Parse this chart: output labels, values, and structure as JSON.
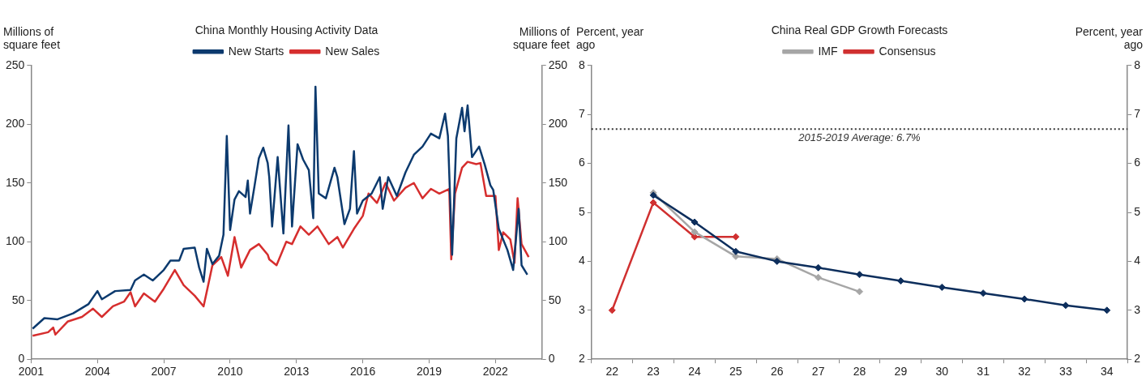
{
  "chart_data": [
    {
      "type": "line",
      "title": "China Monthly Housing Activity Data",
      "ylabel": "Millions of square feet",
      "y2label": "Millions of square feet",
      "xlim": [
        2001,
        2024.1
      ],
      "xticks": [
        2001,
        2004,
        2007,
        2010,
        2013,
        2016,
        2019,
        2022
      ],
      "ylim": [
        0,
        250
      ],
      "yticks": [
        0,
        50,
        100,
        150,
        200,
        250
      ],
      "y2lim": [
        0,
        250
      ],
      "y2ticks": [
        0,
        50,
        100,
        150,
        200,
        250
      ],
      "grid": false,
      "legend": "top",
      "marker": "none",
      "line_style": "solid",
      "series": [
        {
          "name": "New Starts",
          "color": "#0c3a6e",
          "x": [
            2001.07,
            2001.6,
            2002.2,
            2002.9,
            2003.6,
            2004.0,
            2004.2,
            2004.8,
            2005.5,
            2005.7,
            2006.1,
            2006.5,
            2007.0,
            2007.3,
            2007.7,
            2007.9,
            2008.4,
            2008.6,
            2008.8,
            2008.95,
            2009.2,
            2009.5,
            2009.7,
            2009.85,
            2010.0,
            2010.2,
            2010.4,
            2010.7,
            2010.8,
            2010.9,
            2011.1,
            2011.3,
            2011.5,
            2011.7,
            2011.77,
            2011.9,
            2012.15,
            2012.41,
            2012.64,
            2012.8,
            2013.05,
            2013.3,
            2013.56,
            2013.76,
            2013.86,
            2014.01,
            2014.33,
            2014.72,
            2014.85,
            2015.17,
            2015.42,
            2015.6,
            2015.74,
            2016.0,
            2016.4,
            2016.77,
            2016.9,
            2017.15,
            2017.54,
            2017.93,
            2018.31,
            2018.7,
            2019.08,
            2019.46,
            2019.72,
            2019.85,
            2020.04,
            2020.23,
            2020.49,
            2020.6,
            2020.74,
            2020.94,
            2021.26,
            2021.51,
            2021.77,
            2021.9,
            2022.15,
            2022.54,
            2022.8,
            2023.05,
            2023.18,
            2023.44
          ],
          "values": [
            26,
            35,
            34,
            39,
            47,
            58,
            51,
            58,
            59,
            67,
            72,
            67,
            76,
            84,
            84,
            94,
            95,
            78,
            66,
            94,
            81,
            88,
            106,
            190,
            110,
            136,
            143,
            138,
            152,
            124,
            147,
            171,
            180,
            167,
            155,
            113,
            172,
            107,
            199,
            113,
            183,
            170,
            161,
            120,
            232,
            141,
            137,
            163,
            155,
            115,
            128,
            177,
            124,
            135,
            141,
            155,
            128,
            155,
            139,
            159,
            174,
            181,
            192,
            188,
            209,
            190,
            89,
            188,
            214,
            194,
            216,
            172,
            181,
            166,
            148,
            144,
            111,
            93,
            76,
            128,
            80,
            72
          ]
        },
        {
          "name": "New Sales",
          "color": "#d62e2e",
          "x": [
            2001.07,
            2001.77,
            2002.0,
            2002.1,
            2002.65,
            2003.3,
            2003.8,
            2004.2,
            2004.7,
            2005.2,
            2005.5,
            2005.7,
            2006.1,
            2006.6,
            2007.0,
            2007.5,
            2007.9,
            2008.4,
            2008.8,
            2008.95,
            2009.2,
            2009.6,
            2009.9,
            2010.2,
            2010.5,
            2010.9,
            2011.3,
            2011.7,
            2011.77,
            2012.1,
            2012.54,
            2012.8,
            2013.18,
            2013.56,
            2013.95,
            2014.46,
            2014.85,
            2015.1,
            2015.6,
            2016.0,
            2016.26,
            2016.64,
            2017.03,
            2017.41,
            2017.93,
            2018.31,
            2018.7,
            2019.08,
            2019.46,
            2019.91,
            2020.0,
            2020.17,
            2020.49,
            2020.74,
            2021.13,
            2021.32,
            2021.58,
            2022.0,
            2022.15,
            2022.35,
            2022.67,
            2022.86,
            2023.0,
            2023.18,
            2023.5
          ],
          "values": [
            20,
            23,
            27,
            21,
            32,
            36,
            43,
            36,
            45,
            49,
            57,
            45,
            56,
            49,
            60,
            76,
            63,
            54,
            45,
            58,
            80,
            87,
            71,
            104,
            78,
            93,
            98,
            89,
            85,
            80,
            100,
            98,
            113,
            106,
            113,
            98,
            104,
            95,
            111,
            122,
            141,
            133,
            150,
            135,
            146,
            150,
            137,
            145,
            141,
            145,
            85,
            141,
            163,
            168,
            166,
            167,
            139,
            139,
            93,
            108,
            102,
            82,
            137,
            98,
            87
          ]
        }
      ]
    },
    {
      "type": "line",
      "title": "China Real GDP Growth Forecasts",
      "ylabel": "Percent, year ago",
      "y2label": "Percent, year ago",
      "categories": [
        "22",
        "23",
        "24",
        "25",
        "26",
        "27",
        "28",
        "29",
        "30",
        "31",
        "32",
        "33",
        "34"
      ],
      "ylim": [
        2,
        8
      ],
      "yticks": [
        2,
        3,
        4,
        5,
        6,
        7,
        8
      ],
      "y2lim": [
        2,
        8
      ],
      "y2ticks": [
        2,
        3,
        4,
        5,
        6,
        7,
        8
      ],
      "grid": false,
      "legend": "top",
      "marker": "diamond",
      "line_style": "solid",
      "series": [
        {
          "color": "#0d2e5c",
          "values": [
            null,
            5.35,
            4.8,
            4.2,
            4.0,
            3.87,
            3.73,
            3.6,
            3.47,
            3.35,
            3.23,
            3.1,
            3.0
          ]
        },
        {
          "name": "IMF",
          "color": "#a6a6a6",
          "values": [
            null,
            5.4,
            4.6,
            4.1,
            4.05,
            3.67,
            3.38,
            null,
            null,
            null,
            null,
            null,
            null
          ]
        },
        {
          "name": "Consensus",
          "color": "#d03030",
          "values": [
            3.0,
            5.2,
            4.5,
            4.5,
            null,
            null,
            null,
            null,
            null,
            null,
            null,
            null,
            null
          ]
        }
      ],
      "ref_lines": [
        {
          "axis": "y",
          "value": 6.7,
          "label": "2015-2019 Average: 6.7%",
          "color": "#333333",
          "line_style": "dotted"
        }
      ]
    }
  ]
}
